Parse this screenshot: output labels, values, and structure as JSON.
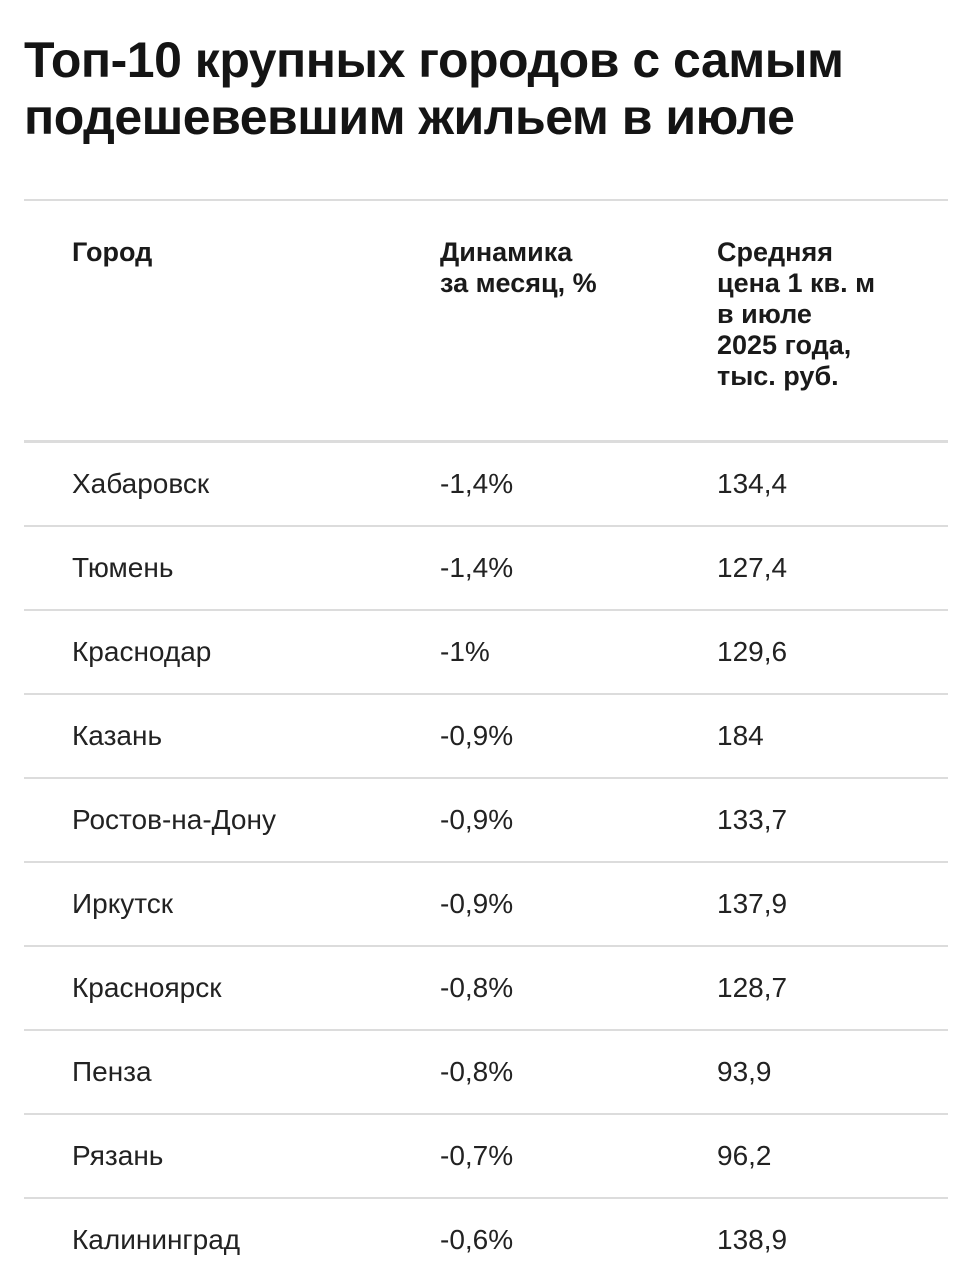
{
  "title": {
    "line1": "Топ-10 крупных городов с самым",
    "line2": "подешевевшим жильем в июле"
  },
  "table": {
    "headers": {
      "city": [
        "Город"
      ],
      "change": [
        "Динамика",
        "за месяц, %"
      ],
      "price": [
        "Средняя",
        "цена 1 кв. м",
        "в июле",
        "2025 года,",
        "тыс. руб."
      ]
    },
    "rows": [
      {
        "city": "Хабаровск",
        "change": "-1,4%",
        "price": "134,4"
      },
      {
        "city": "Тюмень",
        "change": "-1,4%",
        "price": "127,4"
      },
      {
        "city": "Краснодар",
        "change": "-1%",
        "price": "129,6"
      },
      {
        "city": "Казань",
        "change": "-0,9%",
        "price": "184"
      },
      {
        "city": "Ростов-на-Дону",
        "change": "-0,9%",
        "price": "133,7"
      },
      {
        "city": "Иркутск",
        "change": "-0,9%",
        "price": "137,9"
      },
      {
        "city": "Красноярск",
        "change": "-0,8%",
        "price": "128,7"
      },
      {
        "city": "Пенза",
        "change": "-0,8%",
        "price": "93,9"
      },
      {
        "city": "Рязань",
        "change": "-0,7%",
        "price": "96,2"
      },
      {
        "city": "Калининград",
        "change": "-0,6%",
        "price": "138,9"
      }
    ]
  }
}
